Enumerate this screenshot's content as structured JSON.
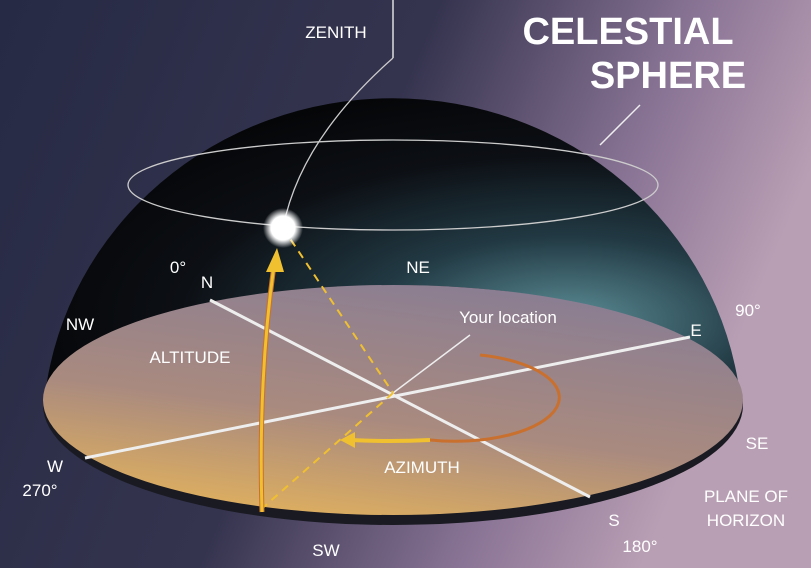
{
  "title": [
    "CELESTIAL",
    "SPHERE"
  ],
  "labels": {
    "zenith": "ZENITH",
    "zero": "0°",
    "n": "N",
    "ne": "NE",
    "nw": "NW",
    "ninety": "90°",
    "e": "E",
    "location": "Your location",
    "altitude": "ALTITUDE",
    "w": "W",
    "two_seventy": "270°",
    "azimuth": "AZIMUTH",
    "se": "SE",
    "plane": [
      "PLANE OF",
      "HORIZON"
    ],
    "s": "S",
    "one_eighty": "180°",
    "sw": "SW"
  }
}
